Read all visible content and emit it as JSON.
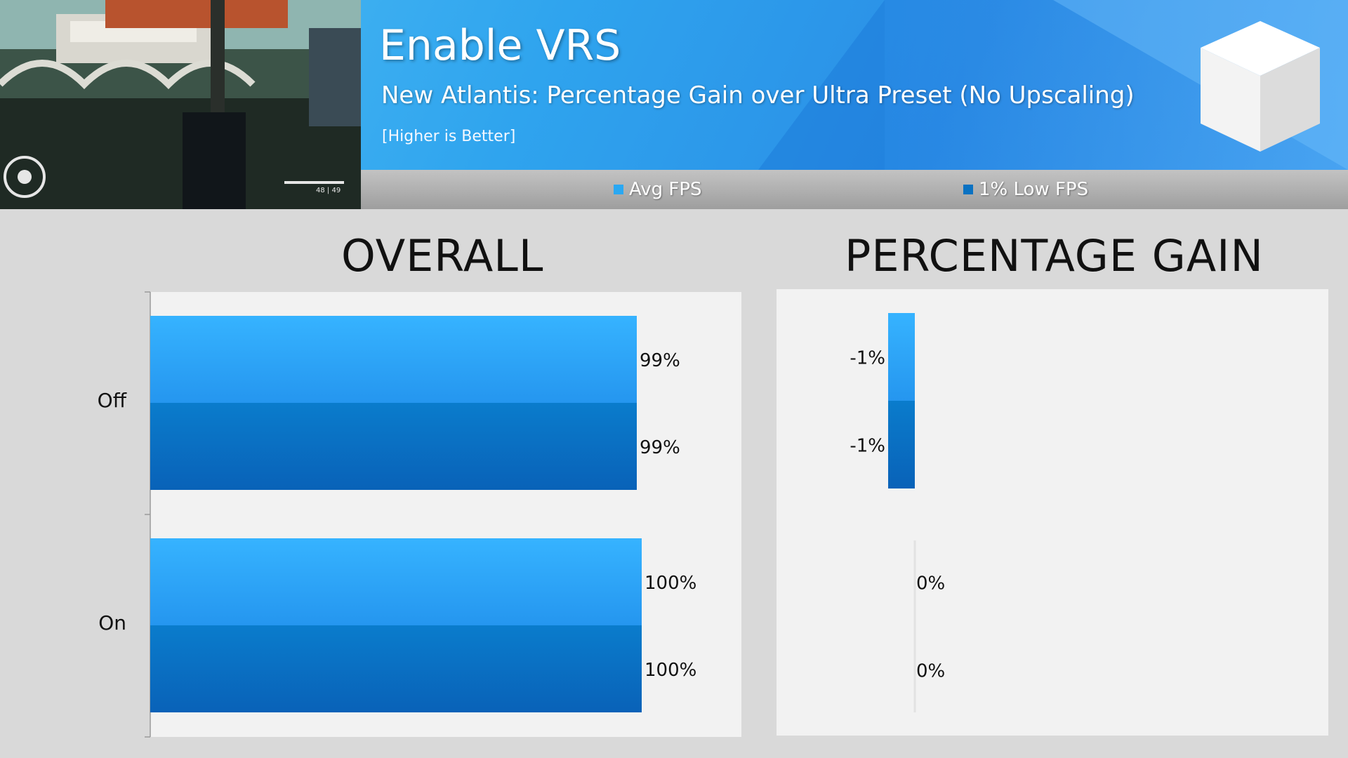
{
  "header": {
    "title": "Enable VRS",
    "subtitle": "New Atlantis: Percentage Gain over Ultra Preset (No Upscaling)",
    "note": "[Higher is Better]"
  },
  "hud": {
    "ammo": "48 | 49"
  },
  "legend": [
    {
      "label": "Avg FPS",
      "color": "#2aa8f2"
    },
    {
      "label": "1% Low FPS",
      "color": "#0a72c2"
    }
  ],
  "colors": {
    "avg": "#2aa8f2",
    "low": "#0a72c2"
  },
  "chart_data": [
    {
      "type": "bar",
      "orientation": "horizontal",
      "title": "OVERALL",
      "categories": [
        "Off",
        "On"
      ],
      "series": [
        {
          "name": "Avg FPS",
          "values": [
            99,
            100
          ],
          "labels": [
            "99%",
            "100%"
          ]
        },
        {
          "name": "1% Low FPS",
          "values": [
            99,
            100
          ],
          "labels": [
            "99%",
            "100%"
          ]
        }
      ],
      "xlim": [
        0,
        140
      ],
      "legend_position": "top"
    },
    {
      "type": "bar",
      "orientation": "horizontal",
      "title": "PERCENTAGE GAIN",
      "categories": [
        "Off",
        "On"
      ],
      "series": [
        {
          "name": "Avg FPS",
          "values": [
            -1,
            0
          ],
          "labels": [
            "-1%",
            "0%"
          ]
        },
        {
          "name": "1% Low FPS",
          "values": [
            -1,
            0
          ],
          "labels": [
            "-1%",
            "0%"
          ]
        }
      ],
      "legend_position": "top"
    }
  ]
}
